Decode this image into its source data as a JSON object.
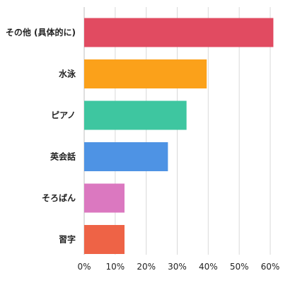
{
  "chart_data": {
    "type": "bar",
    "orientation": "horizontal",
    "categories": [
      "その他 (具体的に)",
      "水泳",
      "ピアノ",
      "英会話",
      "そろばん",
      "習字"
    ],
    "values": [
      61,
      39.5,
      33,
      27,
      13,
      13
    ],
    "colors": [
      "#E14B61",
      "#FBA11A",
      "#3EC6A0",
      "#4E93E4",
      "#DB78C0",
      "#EE6346"
    ],
    "xlim": [
      0,
      60
    ],
    "ticks": [
      0,
      10,
      20,
      30,
      40,
      50,
      60
    ],
    "tick_labels": [
      "0%",
      "10%",
      "20%",
      "30%",
      "40%",
      "50%",
      "60%"
    ],
    "grid": true,
    "title": "",
    "xlabel": "",
    "ylabel": ""
  }
}
